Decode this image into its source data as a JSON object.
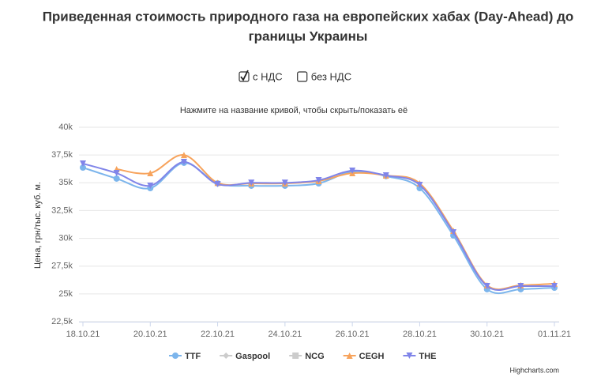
{
  "header": {
    "title_lines": [
      "Приведенная стоимость природного газа на европейских хабах (Day-Ahead) до",
      "границы Украины"
    ],
    "options": [
      {
        "label": "с НДС",
        "checked": true
      },
      {
        "label": "без НДС",
        "checked": false
      }
    ]
  },
  "chart_data": {
    "type": "line",
    "subtitle": "Нажмите на название кривой, чтобы скрыть/показать её",
    "y_label": "Цена, грн/тыс. куб. м.",
    "credit": "Highcharts.com",
    "x": [
      "18.10.21",
      "19.10.21",
      "20.10.21",
      "21.10.21",
      "22.10.21",
      "23.10.21",
      "24.10.21",
      "25.10.21",
      "26.10.21",
      "27.10.21",
      "28.10.21",
      "29.10.21",
      "30.10.21",
      "31.10.21",
      "01.11.21"
    ],
    "xticks": [
      "18.10.21",
      "20.10.21",
      "22.10.21",
      "24.10.21",
      "26.10.21",
      "28.10.21",
      "30.10.21",
      "01.11.21"
    ],
    "ylim": [
      22500,
      40000
    ],
    "yticks": [
      {
        "value": 22500,
        "label": "22,5k"
      },
      {
        "value": 25000,
        "label": "25k"
      },
      {
        "value": 27500,
        "label": "27,5k"
      },
      {
        "value": 30000,
        "label": "30k"
      },
      {
        "value": 32500,
        "label": "32,5k"
      },
      {
        "value": 35000,
        "label": "35k"
      },
      {
        "value": 37500,
        "label": "37,5k"
      },
      {
        "value": 40000,
        "label": "40k"
      }
    ],
    "grid": true,
    "series": [
      {
        "name": "TTF",
        "color": "#7cb5ec",
        "marker": "circle",
        "values": [
          36370,
          35380,
          34520,
          36800,
          34950,
          34740,
          34740,
          34950,
          36000,
          35600,
          34520,
          30260,
          25420,
          25420,
          25560
        ]
      },
      {
        "name": "Gaspool",
        "color": "#cccccc",
        "marker": "diamond",
        "visible": false
      },
      {
        "name": "NCG",
        "color": "#cccccc",
        "marker": "square",
        "visible": false
      },
      {
        "name": "CEGH",
        "color": "#f7a35c",
        "marker": "triangle",
        "values": [
          null,
          36230,
          35870,
          37500,
          35000,
          34950,
          34950,
          35160,
          35870,
          35660,
          34950,
          30680,
          25780,
          25780,
          25920
        ]
      },
      {
        "name": "THE",
        "color": "#8085e9",
        "marker": "triangle-down",
        "values": [
          36730,
          35870,
          34740,
          36870,
          34880,
          35000,
          35000,
          35230,
          36090,
          35660,
          34810,
          30540,
          25700,
          25700,
          25700
        ]
      }
    ]
  }
}
